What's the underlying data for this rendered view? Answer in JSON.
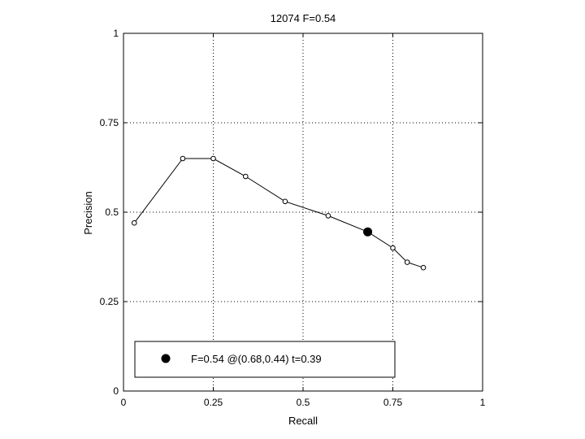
{
  "chart_data": {
    "type": "line",
    "title": "12074 F=0.54",
    "xlabel": "Recall",
    "ylabel": "Precision",
    "xlim": [
      0,
      1
    ],
    "ylim": [
      0,
      1
    ],
    "xticks": [
      "0",
      "0.25",
      "0.5",
      "0.75",
      "1"
    ],
    "yticks": [
      "0",
      "0.25",
      "0.5",
      "0.75",
      "1"
    ],
    "grid": true,
    "legend_position": "bottom",
    "series": [
      {
        "x": [
          0.03,
          0.165,
          0.25,
          0.34,
          0.45,
          0.57,
          0.68,
          0.75,
          0.79,
          0.835
        ],
        "y": [
          0.47,
          0.65,
          0.65,
          0.6,
          0.53,
          0.49,
          0.445,
          0.4,
          0.36,
          0.345
        ],
        "marker": "open-circle",
        "color": "#000000"
      }
    ],
    "highlight_point": {
      "x": 0.68,
      "y": 0.445,
      "marker": "filled-circle",
      "color": "#000000"
    },
    "legend_entries": [
      "F=0.54 @(0.68,0.44) t=0.39"
    ]
  }
}
